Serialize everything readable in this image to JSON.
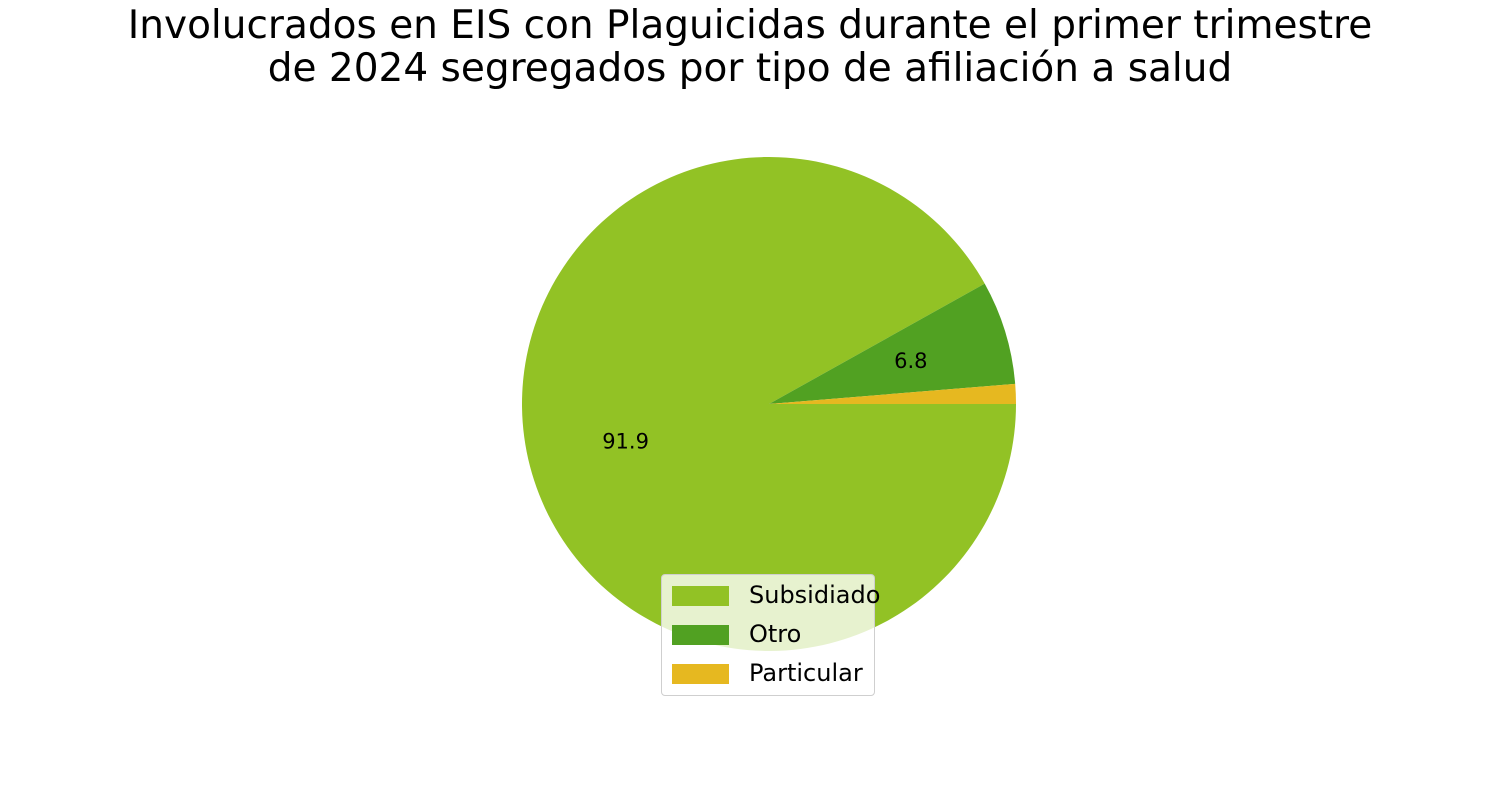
{
  "chart_data": {
    "type": "pie",
    "title_lines": [
      "Involucrados en EIS con Plaguicidas durante el primer trimestre",
      "de 2024 segregados por tipo de afiliación a salud"
    ],
    "slices": [
      {
        "name": "Subsidiado",
        "value": 91.9,
        "label": "91.9",
        "color": "#92c225"
      },
      {
        "name": "Otro",
        "value": 6.8,
        "label": "6.8",
        "color": "#51a122"
      },
      {
        "name": "Particular",
        "value": 1.3,
        "label": "",
        "color": "#e6b820"
      }
    ],
    "start_angle_deg": 0,
    "direction": "clockwise",
    "legend_position": "bottom-center"
  }
}
